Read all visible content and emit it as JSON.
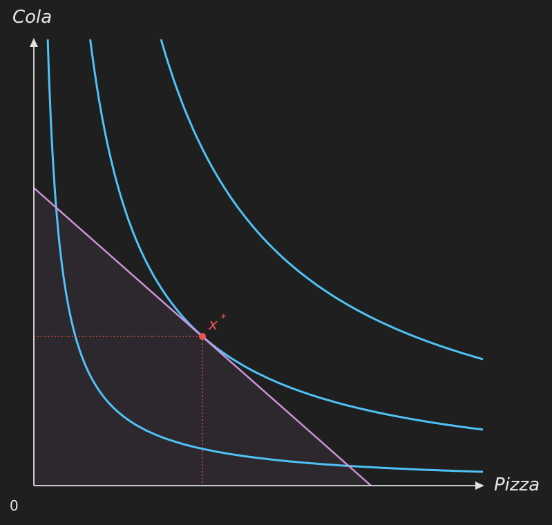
{
  "axes": {
    "y_label": "Cola",
    "x_label": "Pizza",
    "origin": "0"
  },
  "optimum": {
    "label": "x",
    "superscript": "*"
  }
}
